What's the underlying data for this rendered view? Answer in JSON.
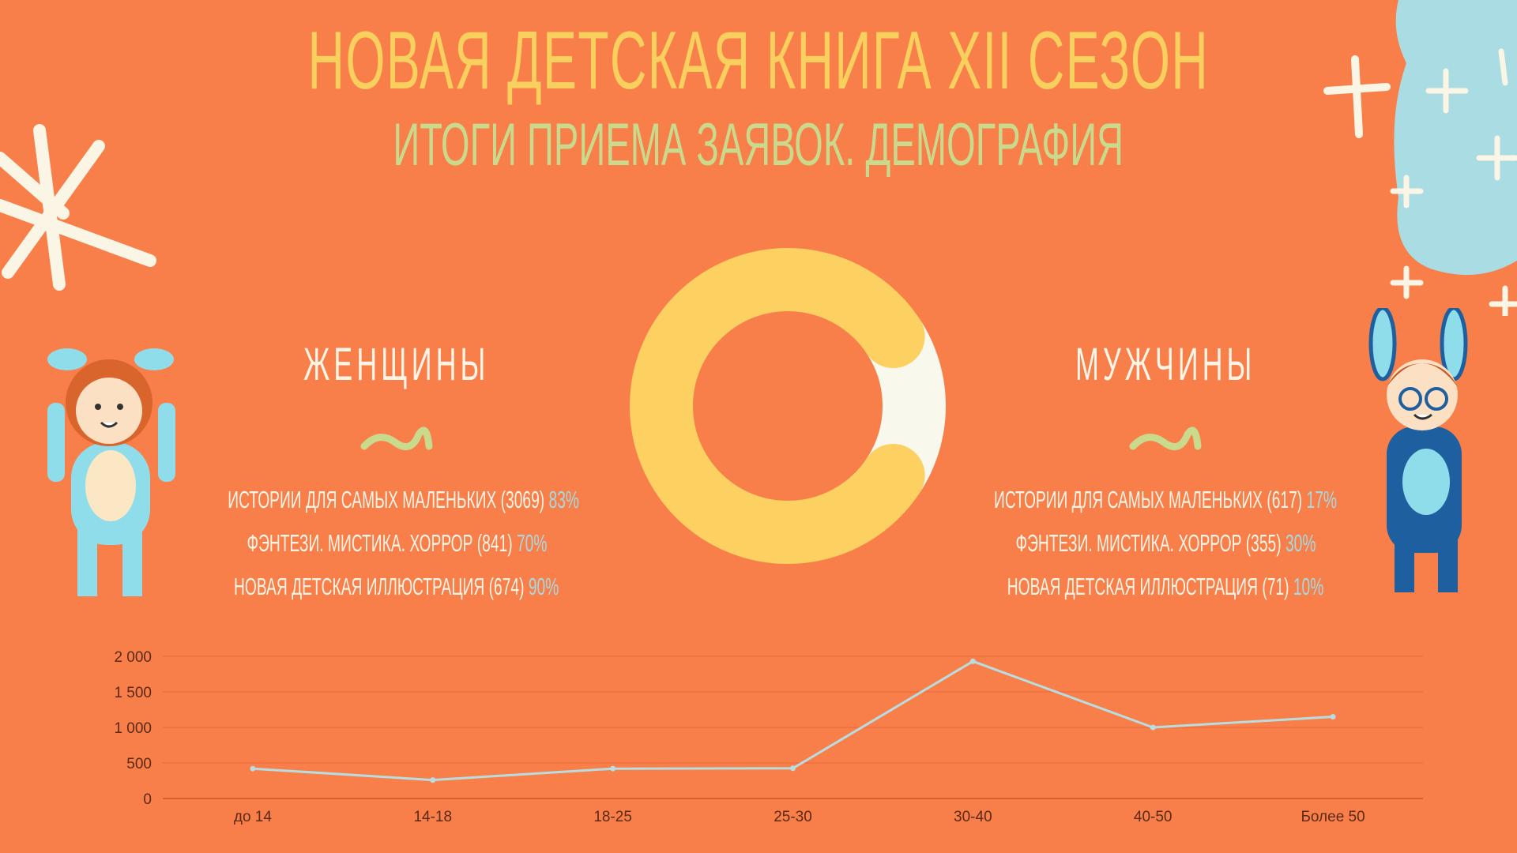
{
  "title": "НОВАЯ ДЕТСКАЯ КНИГА XII СЕЗОН",
  "subtitle": "ИТОГИ ПРИЕМА ЗАЯВОК. ДЕМОГРАФИЯ",
  "women": {
    "heading": "ЖЕНЩИНЫ",
    "rows": [
      {
        "label": "ИСТОРИИ ДЛЯ САМЫХ МАЛЕНЬКИХ (3069)",
        "pct": "83%"
      },
      {
        "label": "ФЭНТЕЗИ. МИСТИКА. ХОРРОР (841)",
        "pct": "70%"
      },
      {
        "label": "НОВАЯ ДЕТСКАЯ ИЛЛЮСТРАЦИЯ (674)",
        "pct": "90%"
      }
    ]
  },
  "men": {
    "heading": "МУЖЧИНЫ",
    "rows": [
      {
        "label": "ИСТОРИИ ДЛЯ САМЫХ МАЛЕНЬКИХ (617)",
        "pct": "17%"
      },
      {
        "label": "ФЭНТЕЗИ. МИСТИКА. ХОРРОР (355)",
        "pct": "30%"
      },
      {
        "label": "НОВАЯ ДЕТСКАЯ ИЛЛЮСТРАЦИЯ (71)",
        "pct": "10%"
      }
    ]
  },
  "colors": {
    "background": "#F87F4A",
    "title": "#F9CF5E",
    "subtitle": "#C9DA8C",
    "women": "#FDD062",
    "men": "#F8F8EC",
    "line": "#B8DDE0"
  },
  "chart_data": [
    {
      "type": "pie",
      "donut": true,
      "categories": [
        "ЖЕНЩИНЫ",
        "МУЖЧИНЫ"
      ],
      "values": [
        4584,
        1043
      ],
      "colors": [
        "#FDD062",
        "#F8F8EC"
      ]
    },
    {
      "type": "line",
      "categories": [
        "до 14",
        "14-18",
        "18-25",
        "25-30",
        "30-40",
        "40-50",
        "Более 50"
      ],
      "values": [
        420,
        260,
        420,
        425,
        1930,
        1000,
        1150
      ],
      "yticks": [
        "0",
        "500",
        "1 000",
        "1 500",
        "2 000"
      ],
      "ylim": [
        0,
        2000
      ],
      "grid": true
    }
  ]
}
